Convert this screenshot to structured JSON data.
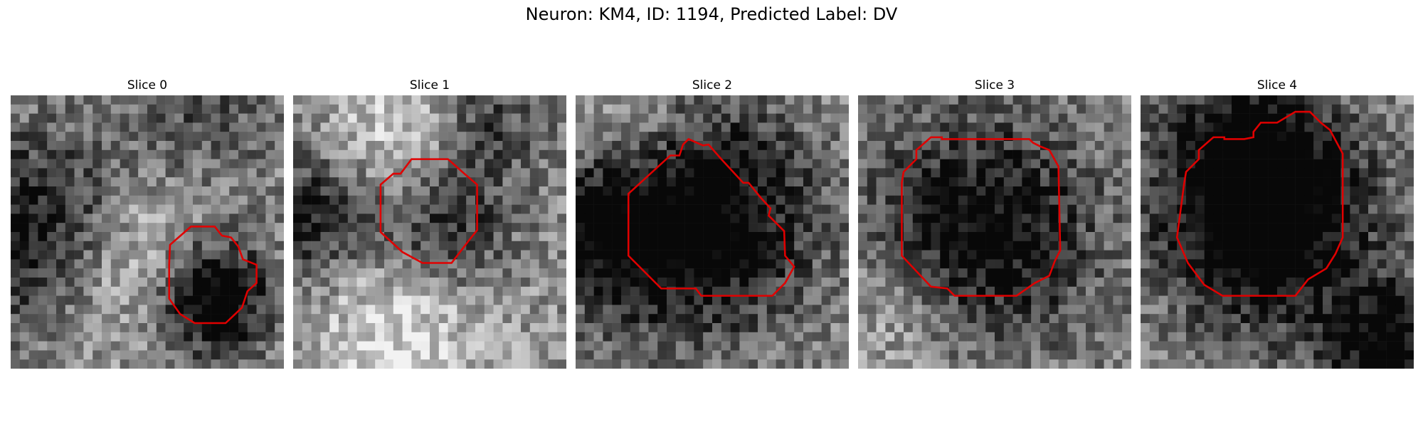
{
  "figure": {
    "title": "Neuron: KM4, ID: 1194, Predicted Label: DV",
    "colors": {
      "contour": "#e00000",
      "background": "#ffffff"
    }
  },
  "panels": [
    {
      "label": "Slice 0",
      "seed": 11,
      "blobs": [
        [
          0.1,
          0.5,
          0.25,
          -0.55
        ],
        [
          0.5,
          0.62,
          0.22,
          0.45
        ],
        [
          0.72,
          0.73,
          0.16,
          -0.85
        ],
        [
          0.7,
          0.1,
          0.2,
          -0.25
        ]
      ]
    },
    {
      "label": "Slice 1",
      "seed": 23,
      "blobs": [
        [
          0.05,
          0.45,
          0.18,
          -0.5
        ],
        [
          0.55,
          0.5,
          0.18,
          -0.5
        ],
        [
          0.4,
          0.8,
          0.25,
          0.35
        ],
        [
          0.4,
          0.15,
          0.2,
          0.3
        ],
        [
          0.7,
          0.1,
          0.15,
          -0.35
        ]
      ]
    },
    {
      "label": "Slice 2",
      "seed": 37,
      "blobs": [
        [
          0.45,
          0.45,
          0.3,
          -0.7
        ],
        [
          0.05,
          0.45,
          0.2,
          -0.45
        ],
        [
          0.15,
          0.15,
          0.2,
          0.3
        ]
      ]
    },
    {
      "label": "Slice 3",
      "seed": 53,
      "blobs": [
        [
          0.45,
          0.5,
          0.3,
          -0.6
        ],
        [
          0.15,
          0.8,
          0.2,
          0.2
        ]
      ]
    },
    {
      "label": "Slice 4",
      "seed": 71,
      "blobs": [
        [
          0.45,
          0.45,
          0.28,
          -0.8
        ],
        [
          0.4,
          0.1,
          0.2,
          -0.3
        ],
        [
          0.9,
          0.92,
          0.16,
          -0.6
        ]
      ]
    }
  ]
}
